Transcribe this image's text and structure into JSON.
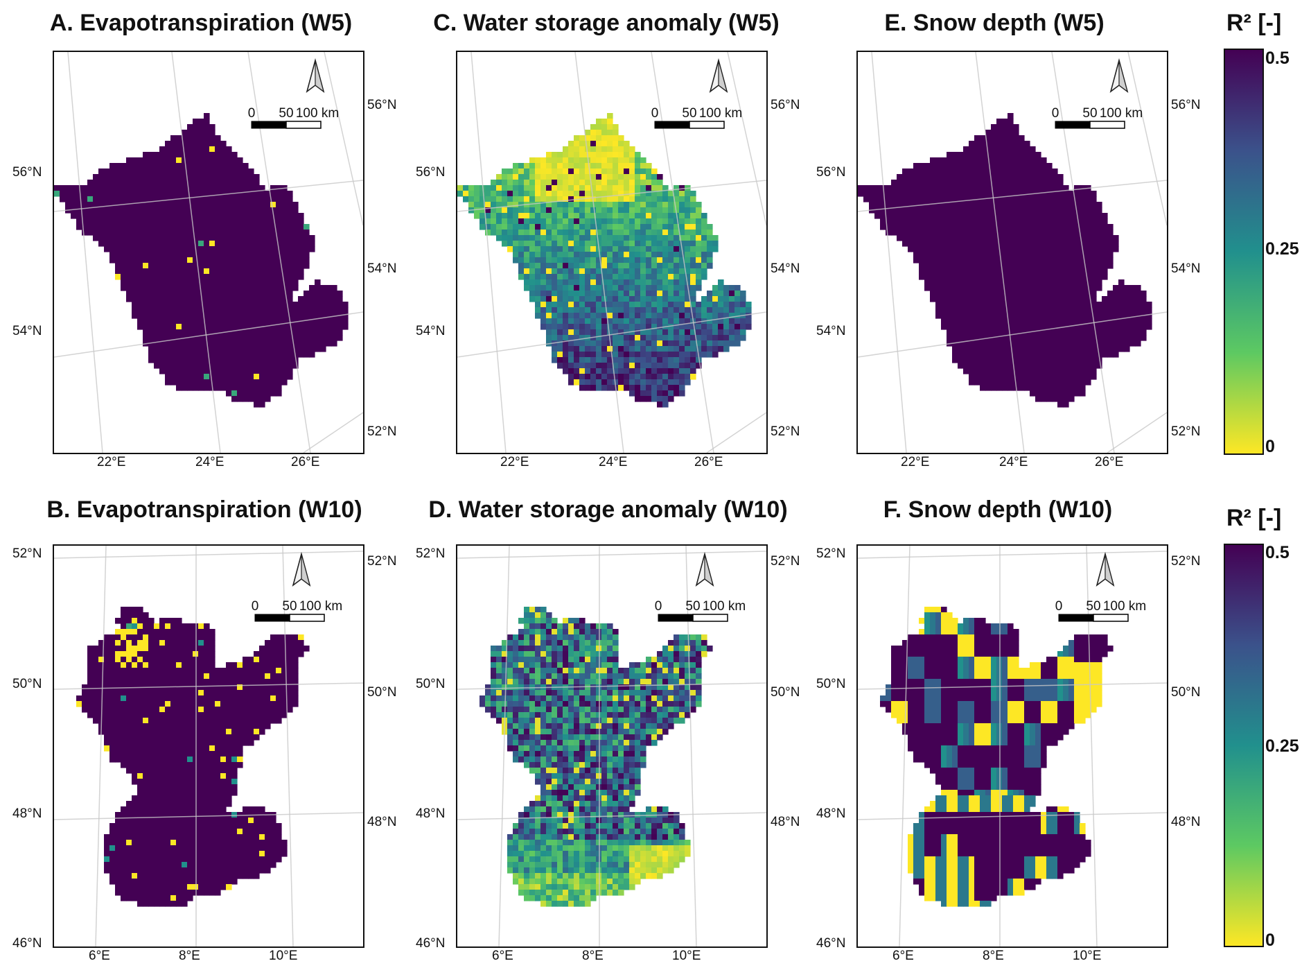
{
  "panels": [
    {
      "id": "A",
      "title": "A. Evapotranspiration (W5)",
      "lat_left": [
        "56°N",
        "54°N"
      ],
      "lat_right": [
        "56°N",
        "54°N",
        "52°N"
      ],
      "lon": [
        "22°E",
        "24°E",
        "26°E"
      ],
      "variant": "ET5"
    },
    {
      "id": "C",
      "title": "C. Water storage anomaly (W5)",
      "lat_left": [
        "56°N",
        "54°N"
      ],
      "lat_right": [
        "56°N",
        "54°N",
        "52°N"
      ],
      "lon": [
        "22°E",
        "24°E",
        "26°E"
      ],
      "variant": "WS5"
    },
    {
      "id": "E",
      "title": "E. Snow depth (W5)",
      "lat_left": [
        "56°N",
        "54°N"
      ],
      "lat_right": [
        "56°N",
        "54°N",
        "52°N"
      ],
      "lon": [
        "22°E",
        "24°E",
        "26°E"
      ],
      "variant": "SD5"
    },
    {
      "id": "B",
      "title": "B. Evapotranspiration (W10)",
      "lat_left": [
        "52°N",
        "50°N",
        "48°N",
        "46°N"
      ],
      "lat_right": [
        "52°N",
        "50°N",
        "48°N"
      ],
      "lon": [
        "6°E",
        "8°E",
        "10°E"
      ],
      "variant": "ET10"
    },
    {
      "id": "D",
      "title": "D. Water storage anomaly (W10)",
      "lat_left": [
        "52°N",
        "50°N",
        "48°N",
        "46°N"
      ],
      "lat_right": [
        "52°N",
        "50°N",
        "48°N"
      ],
      "lon": [
        "6°E",
        "8°E",
        "10°E"
      ],
      "variant": "WS10"
    },
    {
      "id": "F",
      "title": "F. Snow depth (W10)",
      "lat_left": [
        "52°N",
        "50°N",
        "48°N",
        "46°N"
      ],
      "lat_right": [
        "52°N",
        "50°N",
        "48°N"
      ],
      "lon": [
        "6°E",
        "8°E",
        "10°E"
      ],
      "variant": "SD10"
    }
  ],
  "scalebar": {
    "ticks": [
      "0",
      "50",
      "100 km"
    ]
  },
  "colorbar": {
    "title": "R² [-]",
    "ticks": [
      "0.5",
      "0.25",
      "0"
    ],
    "colors": [
      "#440154",
      "#3b528b",
      "#21908d",
      "#5dc962",
      "#fde725"
    ]
  }
}
